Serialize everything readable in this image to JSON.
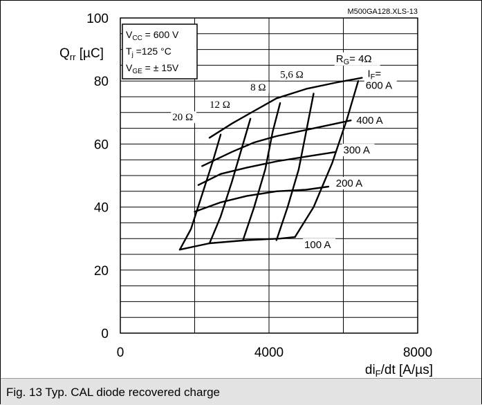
{
  "chart_data": {
    "type": "line",
    "doc_id": "M500GA128.XLS-13",
    "xlabel": {
      "main": "di",
      "sub": "F",
      "rest": "/dt [A/µs]"
    },
    "ylabel": {
      "main": "Q",
      "sub": "rr",
      "rest": " [µC]"
    },
    "xlim": [
      0,
      8000
    ],
    "ylim": [
      0,
      100
    ],
    "x_ticks": [
      "0",
      "4000",
      "8000"
    ],
    "y_ticks": [
      "0",
      "20",
      "40",
      "60",
      "80",
      "100"
    ],
    "grid": true,
    "conditions": [
      {
        "main": "V",
        "sub": "CC",
        "rest": " = 600 V"
      },
      {
        "main": "T",
        "sub": "j",
        "rest": "    =125 °C"
      },
      {
        "main": "V",
        "sub": "GE",
        "rest": " = ± 15V"
      }
    ],
    "if_header": {
      "main": "I",
      "sub": "F",
      "rest": "="
    },
    "rg_header": {
      "main": "R",
      "sub": "G",
      "rest": "= 4Ω"
    },
    "current_curves": [
      {
        "name": "600 A",
        "points": [
          [
            2400,
            62
          ],
          [
            3000,
            66.5
          ],
          [
            3600,
            70.5
          ],
          [
            4200,
            74.5
          ],
          [
            5000,
            77.5
          ],
          [
            5800,
            79.5
          ],
          [
            6500,
            81
          ]
        ]
      },
      {
        "name": "400 A",
        "points": [
          [
            2200,
            53
          ],
          [
            3000,
            57.5
          ],
          [
            3600,
            60.5
          ],
          [
            4200,
            62.5
          ],
          [
            5000,
            64.5
          ],
          [
            5800,
            66.5
          ],
          [
            6200,
            67.5
          ]
        ]
      },
      {
        "name": "300 A",
        "points": [
          [
            2100,
            47
          ],
          [
            2700,
            50.5
          ],
          [
            3400,
            52.5
          ],
          [
            4200,
            54.5
          ],
          [
            5000,
            56
          ],
          [
            5800,
            57.5
          ]
        ]
      },
      {
        "name": "200 A",
        "points": [
          [
            2000,
            38.5
          ],
          [
            2700,
            41.5
          ],
          [
            3400,
            43.5
          ],
          [
            4200,
            45
          ],
          [
            5000,
            45.5
          ],
          [
            5600,
            46.5
          ]
        ]
      },
      {
        "name": "100 A",
        "points": [
          [
            1600,
            26.5
          ],
          [
            2400,
            28.5
          ],
          [
            3400,
            29.5
          ],
          [
            4300,
            30
          ],
          [
            4700,
            30.5
          ]
        ]
      }
    ],
    "resistance_curves": [
      {
        "name": "20 Ω",
        "points": [
          [
            1600,
            26.5
          ],
          [
            1900,
            33
          ],
          [
            2200,
            44
          ],
          [
            2500,
            55
          ],
          [
            2700,
            63
          ]
        ]
      },
      {
        "name": "12 Ω",
        "points": [
          [
            2400,
            28.5
          ],
          [
            2700,
            37
          ],
          [
            3000,
            48
          ],
          [
            3300,
            60
          ],
          [
            3500,
            68
          ]
        ]
      },
      {
        "name": "8 Ω",
        "points": [
          [
            3300,
            29.5
          ],
          [
            3600,
            40
          ],
          [
            3900,
            52
          ],
          [
            4100,
            64
          ],
          [
            4300,
            73
          ]
        ]
      },
      {
        "name": "5,6 Ω",
        "points": [
          [
            4200,
            29.5
          ],
          [
            4500,
            40
          ],
          [
            4800,
            52
          ],
          [
            5000,
            64
          ],
          [
            5200,
            76
          ]
        ]
      },
      {
        "name": "4 Ω",
        "points": [
          [
            4700,
            30.5
          ],
          [
            5200,
            40
          ],
          [
            5700,
            54
          ],
          [
            6100,
            68
          ],
          [
            6400,
            80
          ]
        ]
      }
    ],
    "current_labels": [
      {
        "text": "600 A",
        "x": 6600,
        "y": 77.5
      },
      {
        "text": "400 A",
        "x": 6350,
        "y": 66.5
      },
      {
        "text": "300 A",
        "x": 6000,
        "y": 57
      },
      {
        "text": "200 A",
        "x": 5800,
        "y": 46.5
      },
      {
        "text": "100 A",
        "x": 4950,
        "y": 27
      }
    ],
    "resistance_labels": [
      {
        "text": "20 Ω",
        "x": 1400,
        "y": 67.5
      },
      {
        "text": "12 Ω",
        "x": 2400,
        "y": 71.5
      },
      {
        "text": "8 Ω",
        "x": 3500,
        "y": 77
      },
      {
        "text": "5,6 Ω",
        "x": 4300,
        "y": 81
      }
    ]
  },
  "caption": "Fig. 13 Typ. CAL diode recovered charge"
}
